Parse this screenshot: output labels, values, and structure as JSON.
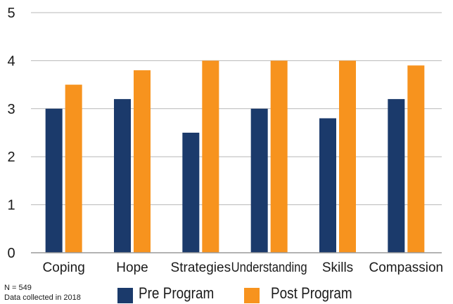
{
  "chart_data": {
    "type": "bar",
    "categories": [
      "Coping",
      "Hope",
      "Strategies",
      "Understanding",
      "Skills",
      "Compassion"
    ],
    "series": [
      {
        "name": "Pre Program",
        "values": [
          3.0,
          3.2,
          2.5,
          3.0,
          2.8,
          3.2
        ],
        "color": "#1b3a6b"
      },
      {
        "name": "Post Program",
        "values": [
          3.5,
          3.8,
          4.0,
          4.0,
          4.0,
          3.9
        ],
        "color": "#f7931e"
      }
    ],
    "yticks": [
      "0",
      "1",
      "2",
      "3",
      "4",
      "5"
    ],
    "ylim": [
      0,
      5
    ],
    "grid": true,
    "gridColor": "#b7b7b7",
    "legendPlacement": "bottom"
  },
  "notes": {
    "sample": "N = 549",
    "collected": "Data collected in 2018"
  },
  "legend": {
    "pre_label": "Pre Program",
    "post_label": "Post Program"
  }
}
